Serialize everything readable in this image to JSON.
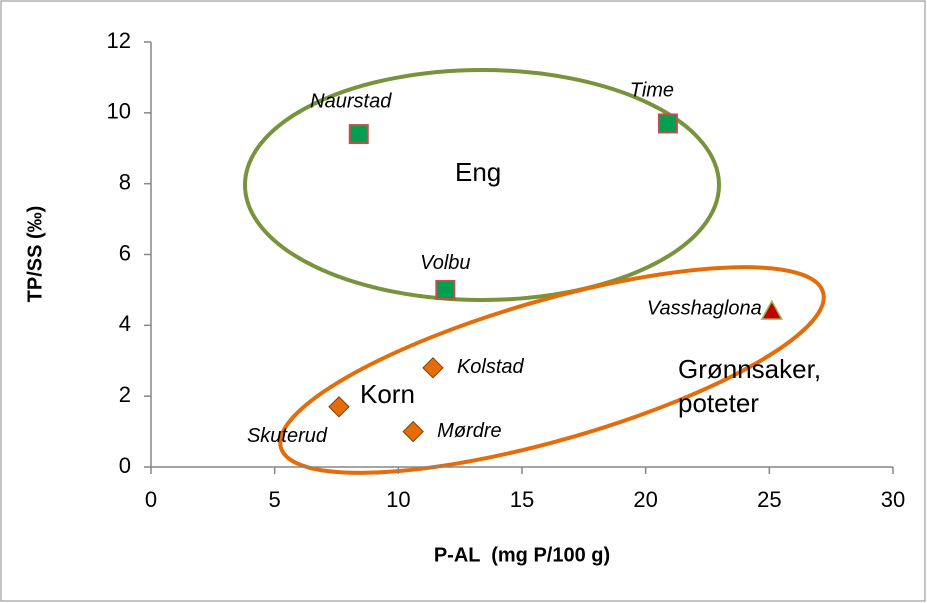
{
  "chart_data": {
    "type": "scatter",
    "xlabel": "P-AL  (mg P/100 g)",
    "ylabel": "TP/SS (‰)",
    "xlim": [
      0,
      30
    ],
    "ylim": [
      0,
      12
    ],
    "xticks": [
      0,
      5,
      10,
      15,
      20,
      25,
      30
    ],
    "yticks": [
      0,
      2,
      4,
      6,
      8,
      10,
      12
    ],
    "series": [
      {
        "name": "Eng",
        "color": "#00a050",
        "marker": "square",
        "labels": [
          "Naurstad",
          "Time",
          "Volbu"
        ],
        "x": [
          8.4,
          20.9,
          11.9
        ],
        "values": [
          9.4,
          9.7,
          5.0
        ]
      },
      {
        "name": "Korn",
        "color": "#e46c0a",
        "marker": "diamond",
        "labels": [
          "Kolstad",
          "Skuterud",
          "Mørdre"
        ],
        "x": [
          11.4,
          7.6,
          10.6
        ],
        "values": [
          2.8,
          1.7,
          1.0
        ]
      },
      {
        "name": "Grønnsaker, poteter",
        "color": "#c00000",
        "marker": "triangle",
        "labels": [
          "Vasshaglona"
        ],
        "x": [
          25.1
        ],
        "values": [
          4.4
        ]
      }
    ]
  }
}
